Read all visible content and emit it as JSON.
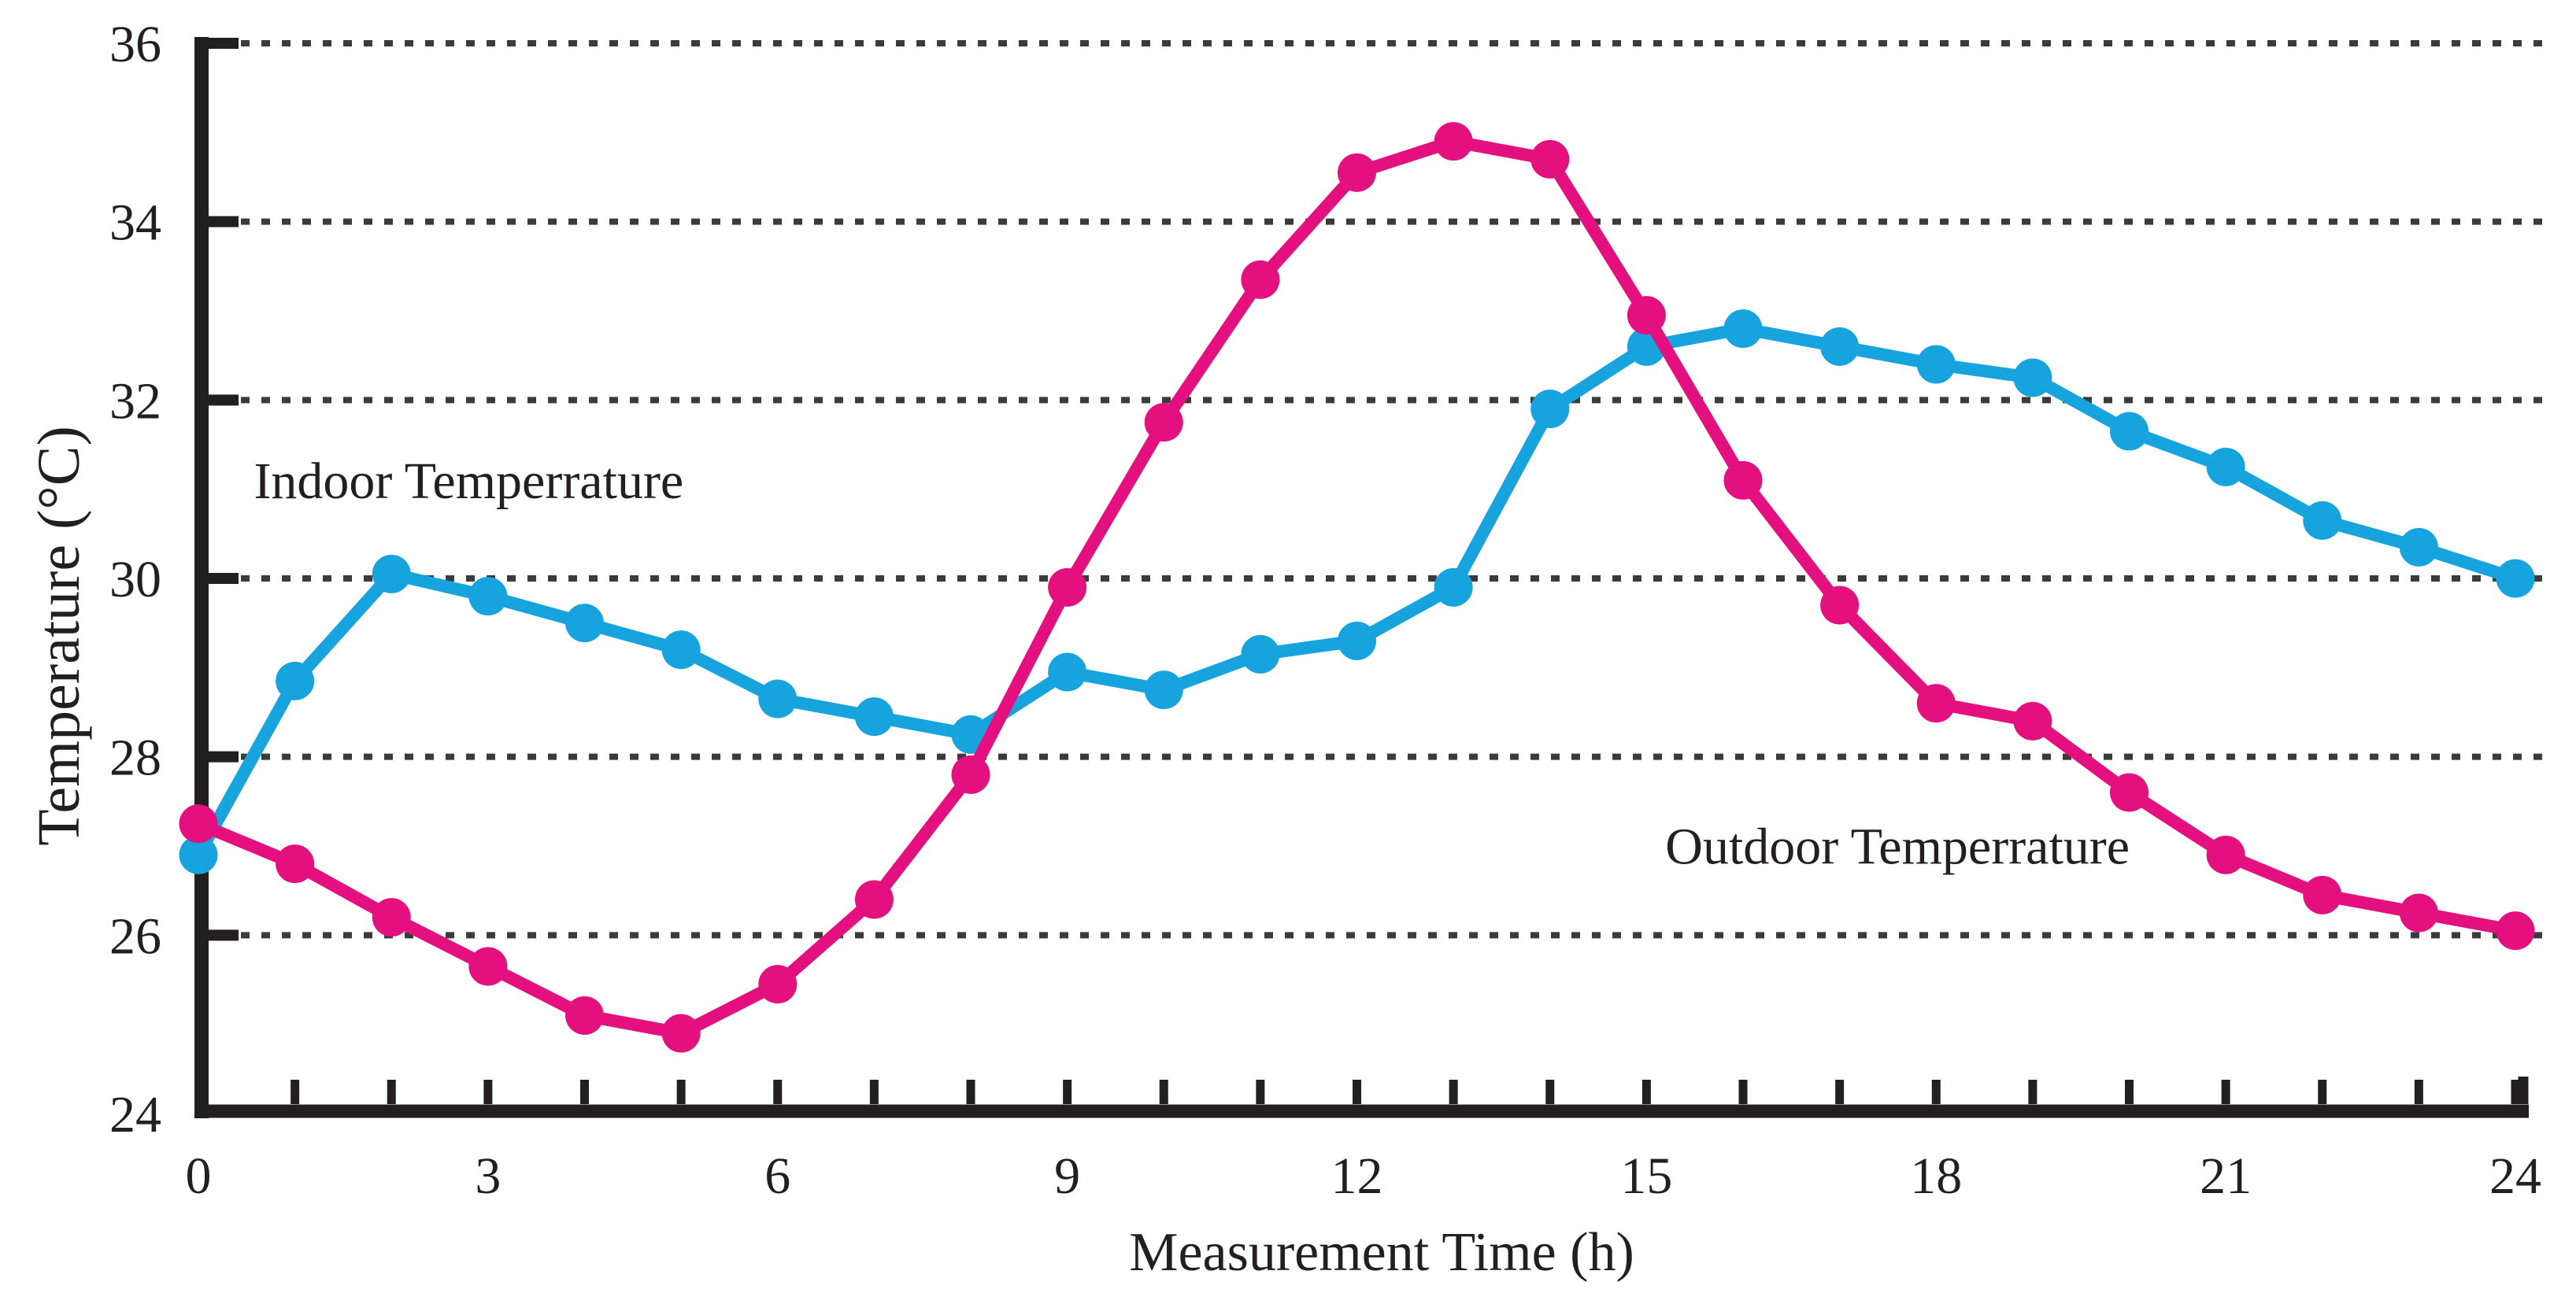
{
  "chart_data": {
    "type": "line",
    "title": "",
    "xlabel": "Measurement Time (h)",
    "ylabel": "Temperature (°C)",
    "xlim": [
      0,
      24
    ],
    "ylim": [
      24,
      36
    ],
    "x_major_tick_labels": [
      0,
      3,
      6,
      9,
      12,
      15,
      18,
      21,
      24
    ],
    "x_minor_tick_step": 1,
    "y_tick_labels": [
      36,
      34,
      32,
      30,
      28,
      26,
      24
    ],
    "gridlines_at": [
      26,
      28,
      30,
      32,
      34,
      36
    ],
    "grid_style": "dotted",
    "grid_on": true,
    "legend_position": "inline-annotations",
    "x": [
      0,
      1,
      2,
      3,
      4,
      5,
      6,
      7,
      8,
      9,
      10,
      11,
      12,
      13,
      14,
      15,
      16,
      17,
      18,
      19,
      20,
      21,
      22,
      23,
      24
    ],
    "series": [
      {
        "id": "indoor",
        "name": "Indoor Temperrature",
        "color": "#17A3DD",
        "values": [
          26.9,
          28.85,
          30.05,
          29.8,
          29.5,
          29.2,
          28.65,
          28.45,
          28.25,
          28.95,
          28.75,
          29.15,
          29.3,
          29.9,
          31.9,
          32.6,
          32.8,
          32.6,
          32.4,
          32.25,
          31.65,
          31.25,
          30.65,
          30.35,
          30.0
        ]
      },
      {
        "id": "outdoor",
        "name": "Outdoor Temperrature",
        "color": "#E5107F",
        "values": [
          27.25,
          26.8,
          26.2,
          25.65,
          25.1,
          24.9,
          25.45,
          26.4,
          27.8,
          29.9,
          31.75,
          33.35,
          34.55,
          34.9,
          34.7,
          32.95,
          31.1,
          29.7,
          28.6,
          28.4,
          27.6,
          26.9,
          26.45,
          26.25,
          26.05
        ]
      }
    ],
    "annotations": [
      {
        "text": "Indoor Temperrature",
        "series": "indoor",
        "h": 2.8,
        "t": 30.9,
        "color": "#17A3DD"
      },
      {
        "text": "Outdoor Temperrature",
        "series": "outdoor",
        "h": 17.6,
        "t": 26.8,
        "color": "#E5107F"
      }
    ],
    "colors": {
      "axis": "#231F20",
      "grid": "#3B3B3B",
      "background": "#FFFFFF",
      "indoor": "#17A3DD",
      "outdoor": "#E5107F"
    }
  }
}
